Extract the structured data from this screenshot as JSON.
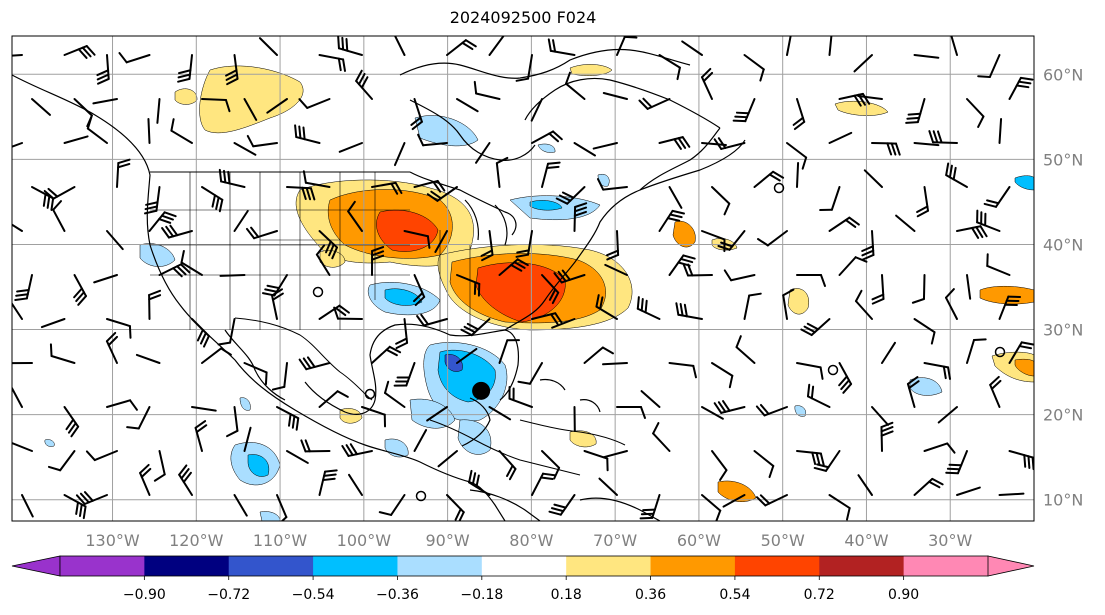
{
  "title": "2024092500 F024",
  "map": {
    "lon_range": [
      -142,
      -20
    ],
    "lat_range": [
      7.5,
      64.5
    ],
    "lon_ticks": [
      {
        "value": -130,
        "label": "130°W"
      },
      {
        "value": -120,
        "label": "120°W"
      },
      {
        "value": -110,
        "label": "110°W"
      },
      {
        "value": -100,
        "label": "100°W"
      },
      {
        "value": -90,
        "label": "90°W"
      },
      {
        "value": -80,
        "label": "80°W"
      },
      {
        "value": -70,
        "label": "70°W"
      },
      {
        "value": -60,
        "label": "60°W"
      },
      {
        "value": -50,
        "label": "50°W"
      },
      {
        "value": -40,
        "label": "40°W"
      },
      {
        "value": -30,
        "label": "30°W"
      }
    ],
    "lat_ticks": [
      {
        "value": 10,
        "label": "10°N"
      },
      {
        "value": 20,
        "label": "20°N"
      },
      {
        "value": 30,
        "label": "30°N"
      },
      {
        "value": 40,
        "label": "40°N"
      },
      {
        "value": 50,
        "label": "50°N"
      },
      {
        "value": 60,
        "label": "60°N"
      }
    ],
    "storm_marker": {
      "lon": -86,
      "lat": 22.8
    }
  },
  "colorbar": {
    "labels": [
      "−0.90",
      "−0.72",
      "−0.54",
      "−0.36",
      "−0.18",
      "0.18",
      "0.36",
      "0.54",
      "0.72",
      "0.90"
    ],
    "under_color": "#9932cc",
    "over_color": "#ff88b4",
    "colors": [
      "#9933cc",
      "#000080",
      "#3355cc",
      "#00bfff",
      "#aadeff",
      "#ffffff",
      "#ffe680",
      "#ff9900",
      "#ff4400",
      "#b22222",
      "#ff88b4"
    ]
  }
}
